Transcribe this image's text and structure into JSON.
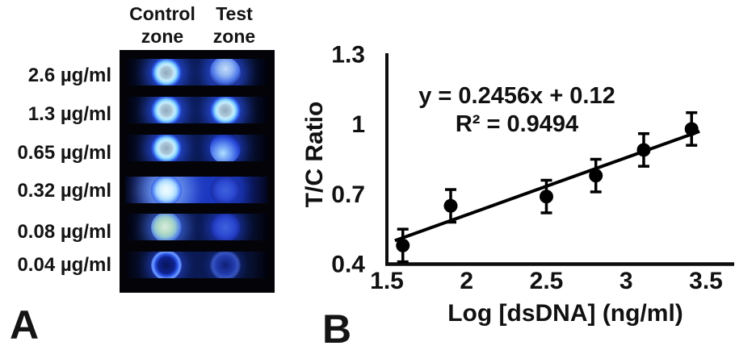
{
  "figure": {
    "panel_a_label": "A",
    "panel_b_label": "B"
  },
  "panel_a": {
    "columns": [
      {
        "line1": "Control",
        "line2": "zone"
      },
      {
        "line1": "Test",
        "line2": "zone"
      }
    ],
    "rows": [
      {
        "label": "2.6 µg/ml",
        "control_dot": "bright-ring",
        "test_dot": "blob-bright",
        "strip_brightness": "normal"
      },
      {
        "label": "1.3 µg/ml",
        "control_dot": "bright-ring",
        "test_dot": "bright-ring",
        "strip_brightness": "normal"
      },
      {
        "label": "0.65 µg/ml",
        "control_dot": "bright-ring",
        "test_dot": "blob-crescent",
        "strip_brightness": "normal"
      },
      {
        "label": "0.32 µg/ml",
        "control_dot": "glow-white",
        "test_dot": "dim",
        "strip_brightness": "bright"
      },
      {
        "label": "0.08 µg/ml",
        "control_dot": "green-tint",
        "test_dot": "dim",
        "strip_brightness": "normal"
      },
      {
        "label": "0.04 µg/ml",
        "control_dot": "ring-dark",
        "test_dot": "faint",
        "strip_brightness": "normal"
      }
    ]
  },
  "chart_data": {
    "type": "scatter",
    "title": "",
    "xlabel": "Log [dsDNA] (ng/ml)",
    "ylabel": "T/C Ratio",
    "x": [
      1.6,
      1.9,
      2.5,
      2.81,
      3.11,
      3.41
    ],
    "y": [
      0.48,
      0.65,
      0.69,
      0.78,
      0.89,
      0.98
    ],
    "y_err": [
      0.07,
      0.07,
      0.07,
      0.07,
      0.07,
      0.07
    ],
    "x_ticks": [
      "1.5",
      "2",
      "2.5",
      "3",
      "3.5"
    ],
    "x_tick_values": [
      1.5,
      2,
      2.5,
      3,
      3.5
    ],
    "y_ticks": [
      "1.3",
      "1",
      "0.7",
      "0.4"
    ],
    "y_tick_values": [
      1.3,
      1,
      0.7,
      0.4
    ],
    "xlim": [
      1.5,
      3.67
    ],
    "ylim": [
      0.4,
      1.305
    ],
    "grid": false,
    "legend": false,
    "trendline": {
      "slope": 0.2456,
      "intercept": 0.12,
      "x_start": 1.55,
      "x_end": 3.46
    },
    "annotation": {
      "line1": "y = 0.2456x + 0.12",
      "line2": "R² = 0.9494"
    },
    "marker_color": "#000000",
    "axis_color": "#0d0d0d"
  }
}
